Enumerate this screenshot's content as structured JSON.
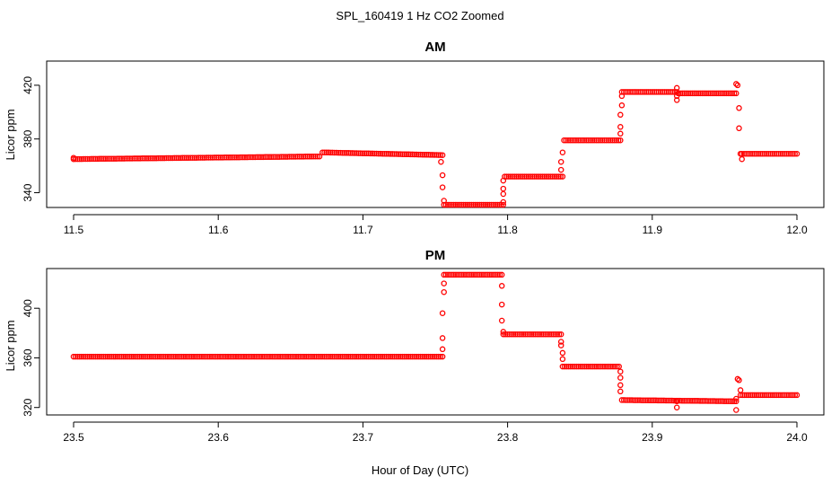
{
  "figure": {
    "title": "SPL_160419  1 Hz CO2 Zoomed",
    "xlabel": "Hour of Day (UTC)"
  },
  "chart_data": [
    {
      "type": "scatter",
      "title": "AM",
      "ylabel": "Licor ppm",
      "xlim": [
        11.5,
        12.0
      ],
      "ylim": [
        329,
        438
      ],
      "xticks": [
        11.5,
        11.6,
        11.7,
        11.8,
        11.9,
        12.0
      ],
      "xtick_labels": [
        "11.5",
        "11.6",
        "11.7",
        "11.8",
        "11.9",
        "12.0"
      ],
      "yticks": [
        340,
        380,
        420
      ],
      "ytick_labels": [
        "340",
        "380",
        "420"
      ],
      "grid": false,
      "marker": "open-circle",
      "color": "#ff0000",
      "segments": [
        {
          "x": [
            11.5,
            11.67
          ],
          "y": [
            365,
            367
          ]
        },
        {
          "x": [
            11.672,
            11.755
          ],
          "y": [
            370,
            368
          ]
        },
        {
          "x": [
            11.756,
            11.797
          ],
          "y": [
            331,
            331
          ]
        },
        {
          "x": [
            11.798,
            11.838
          ],
          "y": [
            352,
            352
          ]
        },
        {
          "x": [
            11.839,
            11.878
          ],
          "y": [
            379,
            379
          ]
        },
        {
          "x": [
            11.879,
            11.917
          ],
          "y": [
            415,
            415
          ]
        },
        {
          "x": [
            11.918,
            11.958
          ],
          "y": [
            414,
            414
          ]
        },
        {
          "x": [
            11.962,
            12.0
          ],
          "y": [
            369,
            369
          ]
        }
      ],
      "points": [
        {
          "x": 11.5,
          "y": 366
        },
        {
          "x": 11.754,
          "y": 363
        },
        {
          "x": 11.755,
          "y": 353
        },
        {
          "x": 11.755,
          "y": 344
        },
        {
          "x": 11.756,
          "y": 334
        },
        {
          "x": 11.797,
          "y": 333
        },
        {
          "x": 11.797,
          "y": 339
        },
        {
          "x": 11.797,
          "y": 343
        },
        {
          "x": 11.797,
          "y": 349
        },
        {
          "x": 11.837,
          "y": 357
        },
        {
          "x": 11.837,
          "y": 363
        },
        {
          "x": 11.838,
          "y": 370
        },
        {
          "x": 11.878,
          "y": 384
        },
        {
          "x": 11.878,
          "y": 389
        },
        {
          "x": 11.878,
          "y": 398
        },
        {
          "x": 11.879,
          "y": 405
        },
        {
          "x": 11.879,
          "y": 412
        },
        {
          "x": 11.917,
          "y": 418
        },
        {
          "x": 11.917,
          "y": 412
        },
        {
          "x": 11.917,
          "y": 409
        },
        {
          "x": 11.958,
          "y": 421
        },
        {
          "x": 11.959,
          "y": 420
        },
        {
          "x": 11.96,
          "y": 403
        },
        {
          "x": 11.96,
          "y": 388
        },
        {
          "x": 11.961,
          "y": 369
        },
        {
          "x": 11.962,
          "y": 365
        }
      ]
    },
    {
      "type": "scatter",
      "title": "PM",
      "ylabel": "Licor ppm",
      "xlim": [
        23.5,
        24.0
      ],
      "ylim": [
        314,
        432
      ],
      "xticks": [
        23.5,
        23.6,
        23.7,
        23.8,
        23.9,
        24.0
      ],
      "xtick_labels": [
        "23.5",
        "23.6",
        "23.7",
        "23.8",
        "23.9",
        "24.0"
      ],
      "yticks": [
        320,
        360,
        400
      ],
      "ytick_labels": [
        "320",
        "360",
        "400"
      ],
      "grid": false,
      "marker": "open-circle",
      "color": "#ff0000",
      "segments": [
        {
          "x": [
            23.5,
            23.755
          ],
          "y": [
            361,
            361
          ]
        },
        {
          "x": [
            23.756,
            23.796
          ],
          "y": [
            427,
            427
          ]
        },
        {
          "x": [
            23.797,
            23.837
          ],
          "y": [
            379,
            379
          ]
        },
        {
          "x": [
            23.838,
            23.877
          ],
          "y": [
            353,
            353
          ]
        },
        {
          "x": [
            23.879,
            23.958
          ],
          "y": [
            326,
            325
          ]
        },
        {
          "x": [
            23.961,
            24.0
          ],
          "y": [
            330,
            330
          ]
        }
      ],
      "points": [
        {
          "x": 23.755,
          "y": 367
        },
        {
          "x": 23.755,
          "y": 376
        },
        {
          "x": 23.755,
          "y": 396
        },
        {
          "x": 23.756,
          "y": 413
        },
        {
          "x": 23.756,
          "y": 420
        },
        {
          "x": 23.796,
          "y": 418
        },
        {
          "x": 23.796,
          "y": 403
        },
        {
          "x": 23.796,
          "y": 390
        },
        {
          "x": 23.797,
          "y": 381
        },
        {
          "x": 23.837,
          "y": 373
        },
        {
          "x": 23.837,
          "y": 370
        },
        {
          "x": 23.838,
          "y": 364
        },
        {
          "x": 23.838,
          "y": 359
        },
        {
          "x": 23.878,
          "y": 349
        },
        {
          "x": 23.878,
          "y": 344
        },
        {
          "x": 23.878,
          "y": 338
        },
        {
          "x": 23.878,
          "y": 333
        },
        {
          "x": 23.917,
          "y": 325
        },
        {
          "x": 23.917,
          "y": 320
        },
        {
          "x": 23.958,
          "y": 318
        },
        {
          "x": 23.958,
          "y": 327
        },
        {
          "x": 23.959,
          "y": 343
        },
        {
          "x": 23.96,
          "y": 342
        },
        {
          "x": 23.961,
          "y": 334
        }
      ]
    }
  ]
}
